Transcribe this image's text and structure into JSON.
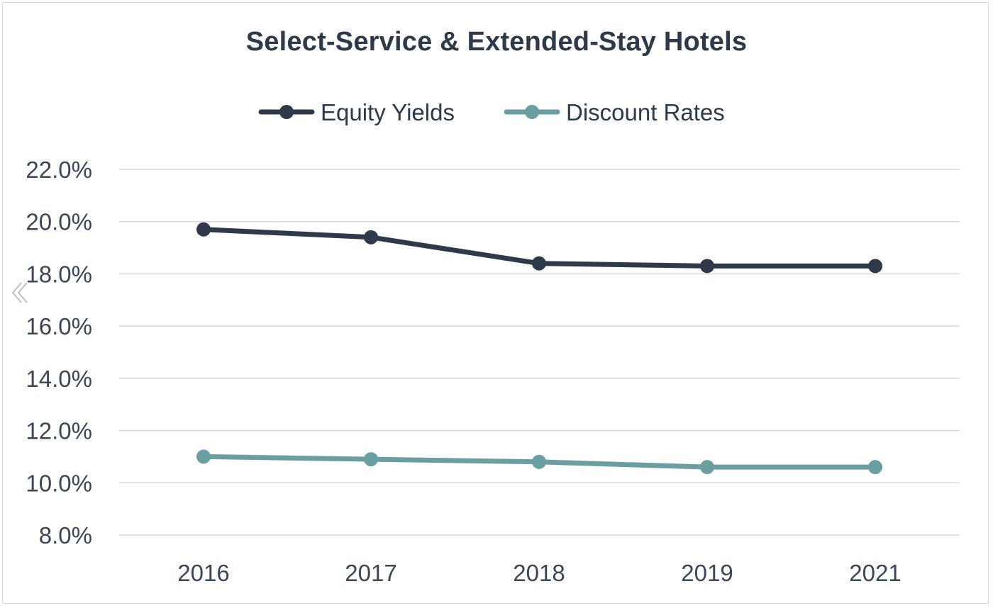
{
  "chart_data": {
    "type": "line",
    "title": "Select-Service & Extended-Stay Hotels",
    "xlabel": "",
    "ylabel": "",
    "categories": [
      "2016",
      "2017",
      "2018",
      "2019",
      "2021"
    ],
    "series": [
      {
        "name": "Equity Yields",
        "color": "#2e3a4a",
        "values": [
          19.7,
          19.4,
          18.4,
          18.3,
          18.3
        ]
      },
      {
        "name": "Discount Rates",
        "color": "#6a9ea0",
        "values": [
          11.0,
          10.9,
          10.8,
          10.6,
          10.6
        ]
      }
    ],
    "ylim": [
      8,
      22
    ],
    "yticks": [
      8,
      10,
      12,
      14,
      16,
      18,
      20,
      22
    ],
    "ytick_labels": [
      "8.0%",
      "10.0%",
      "12.0%",
      "14.0%",
      "16.0%",
      "18.0%",
      "20.0%",
      "22.0%"
    ],
    "grid": "horizontal",
    "legend_position": "top-center"
  },
  "colors": {
    "grid": "#d9d9d9",
    "text": "#2d3a4a",
    "border": "#d9d9d9"
  },
  "icons": {
    "nav": "chevron-left-icon"
  }
}
